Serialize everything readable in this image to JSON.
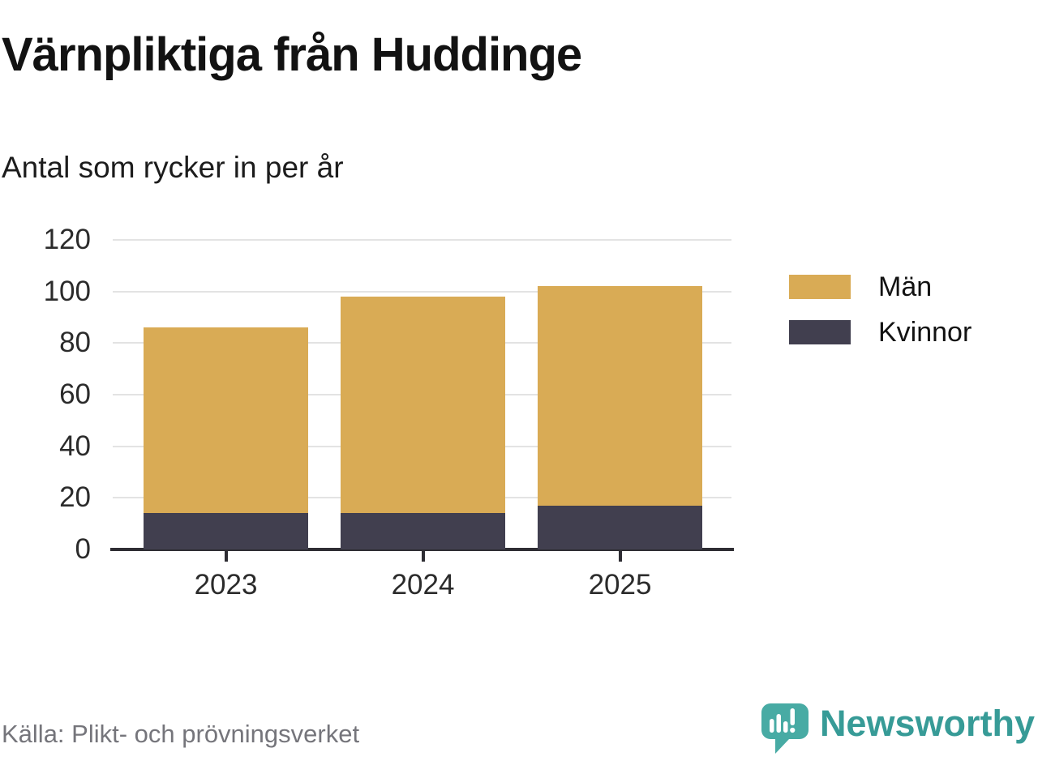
{
  "chart": {
    "title": "Värnpliktiga från Huddinge",
    "subtitle": "Antal som rycker in per år",
    "source": "Källa: Plikt- och prövningsverket",
    "brand": {
      "name": "Newsworthy",
      "icon": "speech-bubble-bar-chart-icon",
      "wordmark_color": "#379B97",
      "icon_color": "#48ABA4"
    }
  },
  "chart_data": {
    "type": "bar",
    "stacked": true,
    "categories": [
      "2023",
      "2024",
      "2025"
    ],
    "series": [
      {
        "name": "Män",
        "color": "#D9AB55",
        "values": [
          72,
          84,
          85
        ]
      },
      {
        "name": "Kvinnor",
        "color": "#413F4F",
        "values": [
          14,
          14,
          17
        ]
      }
    ],
    "stack_order": [
      "Kvinnor",
      "Män"
    ],
    "totals": [
      86,
      98,
      102
    ],
    "title": "Värnpliktiga från Huddinge",
    "xlabel": "",
    "ylabel": "Antal som rycker in per år",
    "ylim": [
      0,
      120
    ],
    "yticks": [
      0,
      20,
      40,
      60,
      80,
      100,
      120
    ],
    "grid": true,
    "legend_position": "right",
    "colors": {
      "grid": "#E3E3E3",
      "axis": "#2E2D33",
      "tick_label": "#2B2B2B"
    }
  }
}
